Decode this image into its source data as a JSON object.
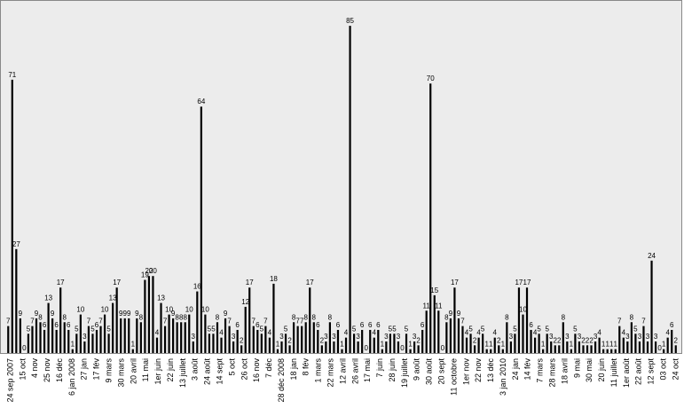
{
  "chart_data": {
    "type": "bar",
    "title": "",
    "xlabel": "",
    "ylabel": "",
    "ylim": [
      0,
      90
    ],
    "grid": false,
    "legend": "none",
    "bar_color": "#000000",
    "background_color": "#ececec",
    "values": [
      7,
      71,
      27,
      9,
      0,
      5,
      7,
      9,
      8,
      6,
      13,
      9,
      6,
      17,
      8,
      6,
      1,
      5,
      10,
      3,
      7,
      5,
      6,
      7,
      10,
      5,
      13,
      17,
      9,
      9,
      9,
      1,
      9,
      8,
      19,
      20,
      20,
      4,
      13,
      7,
      10,
      9,
      8,
      8,
      8,
      10,
      3,
      16,
      64,
      10,
      5,
      5,
      8,
      4,
      9,
      7,
      3,
      6,
      2,
      12,
      17,
      7,
      6,
      5,
      7,
      4,
      18,
      1,
      3,
      5,
      2,
      8,
      7,
      7,
      8,
      17,
      8,
      6,
      2,
      3,
      8,
      3,
      6,
      1,
      4,
      85,
      5,
      3,
      6,
      0,
      6,
      4,
      6,
      1,
      3,
      5,
      5,
      3,
      0,
      5,
      1,
      3,
      2,
      6,
      11,
      70,
      15,
      11,
      0,
      8,
      9,
      17,
      9,
      7,
      4,
      5,
      2,
      4,
      5,
      1,
      1,
      4,
      2,
      1,
      8,
      3,
      5,
      17,
      10,
      17,
      6,
      4,
      5,
      1,
      5,
      3,
      2,
      2,
      8,
      3,
      1,
      5,
      3,
      2,
      2,
      2,
      3,
      4,
      1,
      1,
      1,
      1,
      7,
      4,
      3,
      8,
      5,
      3,
      7,
      3,
      24,
      3,
      0,
      1,
      4,
      6,
      2
    ],
    "data_labels": [
      "7",
      "71",
      "27",
      "9",
      "0",
      "5",
      "7",
      "9",
      "8",
      "6",
      "13",
      "9",
      "6",
      "17",
      "8",
      "6",
      "1",
      "5",
      "10",
      "3",
      "7",
      "5",
      "6",
      "7",
      "10",
      "5",
      "13",
      "17",
      "9",
      "9",
      "9",
      "1",
      "9",
      "8",
      "19",
      "20",
      "20",
      "4",
      "13",
      "7",
      "10",
      "9",
      "8",
      "8",
      "8",
      "10",
      "3",
      "16",
      "64",
      "10",
      "5",
      "5",
      "8",
      "4",
      "9",
      "7",
      "3",
      "6",
      "2",
      "12",
      "17",
      "7",
      "6",
      "5",
      "7",
      "4",
      "18",
      "1",
      "3",
      "5",
      "2",
      "8",
      "7",
      "7",
      "8",
      "17",
      "8",
      "6",
      "2",
      "3",
      "8",
      "3",
      "6",
      "1",
      "4",
      "85",
      "5",
      "3",
      "6",
      "0",
      "6",
      "4",
      "6",
      "1",
      "3",
      "5",
      "5",
      "3",
      "0",
      "5",
      "1",
      "3",
      "2",
      "6",
      "11",
      "70",
      "15",
      "11",
      "0",
      "8",
      "9",
      "17",
      "9",
      "7",
      "4",
      "5",
      "2",
      "4",
      "5",
      "1",
      "1",
      "4",
      "2",
      "1",
      "8",
      "3",
      "5",
      "17",
      "10",
      "17",
      "6",
      "4",
      "5",
      "1",
      "5",
      "3",
      "2",
      "2",
      "8",
      "3",
      "1",
      "5",
      "3",
      "2",
      "2",
      "2",
      "3",
      "4",
      "1",
      "1",
      "1",
      "1",
      "7",
      "4",
      "3",
      "8",
      "5",
      "3",
      "7",
      "3",
      "24",
      "3",
      "0",
      "1",
      "4",
      "6",
      "2"
    ],
    "tick_labels": [
      "24 sep 2007",
      "15 oct",
      "4 nov",
      "25 nov",
      "16 déc",
      "6 jan 2008",
      "27 jan",
      "17 fév",
      "9 mars",
      "30 mars",
      "20 avril",
      "11 mai",
      "1er juin",
      "22 juin",
      "13 juillet",
      "3 août",
      "24 août",
      "14 sept",
      "5 oct",
      "26 oct",
      "16 nov",
      "7 déc",
      "28 déc 2008",
      "18 jan",
      "8 fév",
      "1 mars",
      "22 mars",
      "12 avril",
      "26 avril",
      "17 mai",
      "7 juin",
      "28 juin",
      "19 juillet",
      "9 août",
      "30 août",
      "20 sept",
      "11 octobre",
      "1er nov",
      "22 nov",
      "13 déc",
      "3 jan 2010",
      "24 jan",
      "14 fév",
      "7 mars",
      "28 mars",
      "18 avril",
      "9 mai",
      "30 mai",
      "20 juin",
      "11 juillet",
      "1er août",
      "22 août",
      "12 sept",
      "03 oct",
      "24 oct"
    ]
  }
}
